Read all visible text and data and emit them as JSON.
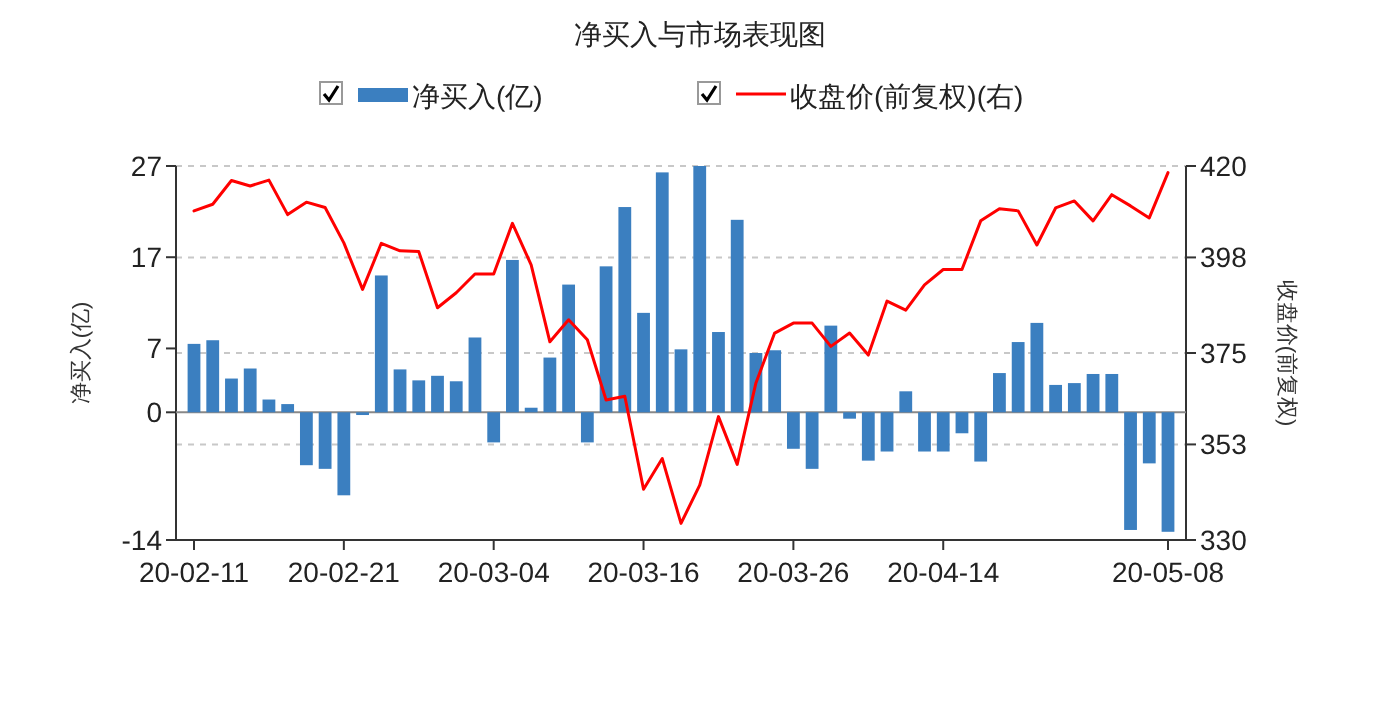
{
  "chart_data": {
    "type": "bar",
    "title": "净买入与市场表现图",
    "ylabel": "净买入(亿)",
    "y2label": "收盘价(前复权)",
    "categories": [
      "20-02-11",
      null,
      null,
      null,
      null,
      null,
      null,
      null,
      "20-02-21",
      null,
      null,
      null,
      null,
      null,
      null,
      null,
      "20-03-04",
      null,
      null,
      null,
      null,
      null,
      null,
      null,
      "20-03-16",
      null,
      null,
      null,
      null,
      null,
      null,
      null,
      "20-03-26",
      null,
      null,
      null,
      null,
      null,
      null,
      null,
      "20-04-14",
      null,
      null,
      null,
      null,
      null,
      null,
      null,
      null,
      null,
      null,
      null,
      "20-05-08"
    ],
    "series": [
      {
        "name": "净买入(亿)",
        "color": "#3b7fc0",
        "values": [
          7.5,
          7.9,
          3.7,
          4.8,
          1.4,
          0.9,
          -5.8,
          -6.2,
          -9.1,
          -0.3,
          15.0,
          4.7,
          3.5,
          4.0,
          3.4,
          8.2,
          -3.3,
          16.7,
          0.5,
          6.0,
          14.0,
          -3.3,
          16.0,
          22.5,
          10.9,
          26.3,
          6.9,
          27.0,
          8.8,
          21.1,
          6.5,
          6.8,
          -4.0,
          -6.2,
          9.5,
          -0.7,
          -5.3,
          -4.3,
          2.3,
          -4.3,
          -4.3,
          -2.3,
          -5.4,
          4.3,
          7.7,
          9.8,
          3.0,
          3.2,
          4.2,
          4.2,
          -12.9,
          -5.6,
          -13.1
        ]
      },
      {
        "name": "收盘价(前复权)(右)",
        "type": "line",
        "axis": "y2",
        "color": "#ff0000",
        "values": [
          409.2,
          410.8,
          416.5,
          415.2,
          416.6,
          408.3,
          411.3,
          410.0,
          401.5,
          390.3,
          401.4,
          399.6,
          399.4,
          385.9,
          389.5,
          394.0,
          394.0,
          406.2,
          396.2,
          377.7,
          383.0,
          378.2,
          363.7,
          364.6,
          342.2,
          349.6,
          334.0,
          343.2,
          359.7,
          348.2,
          367.8,
          379.8,
          382.2,
          382.2,
          376.6,
          379.8,
          374.5,
          387.5,
          385.3,
          391.4,
          395.1,
          395.1,
          406.8,
          409.7,
          409.2,
          401.0,
          409.9,
          411.6,
          406.8,
          413.1,
          410.4,
          407.5,
          418.4
        ]
      }
    ],
    "ylim": [
      -14,
      27
    ],
    "yticks": [
      -14,
      0,
      7,
      17,
      27
    ],
    "y2lim": [
      330,
      420
    ],
    "y2ticks": [
      330,
      353,
      375,
      398,
      420
    ],
    "grid": "y",
    "legend": "top",
    "line_style": "solid"
  }
}
